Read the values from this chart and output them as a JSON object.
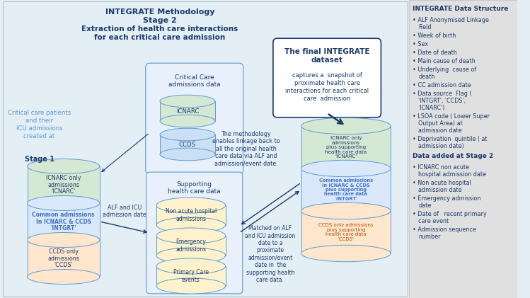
{
  "bg_color": "#e4eef5",
  "dark_blue": "#1a3a6b",
  "mid_blue": "#4472c4",
  "teal": "#5b9bd5",
  "green_light": "#d5e8d4",
  "blue_light": "#dae8fc",
  "orange_light": "#ffe6cc",
  "yellow_light": "#fff2cc",
  "white": "#ffffff",
  "sidebar_bg": "#e0e0e0",
  "sidebar_title": "INTEGRATE Data Structure",
  "sidebar_items": [
    "ALF Anonymised Linkage\nField",
    "Week of birth",
    "Sex",
    "Date of death",
    "Main cause of death",
    "Underlying  cause of\ndeath",
    "CC admission date",
    "Data source  Flag (\n'INTGRT', 'CCDS',\n'ICNARC')",
    "LSOA code ( Lower Super\nOutput Area) at\nadmission date",
    "Deprivation  quintile ( at\nadmission date)"
  ],
  "sidebar_title2": "Data added at Stage 2",
  "sidebar_items2": [
    "ICNARC non acute\nhospital admission date",
    "Non acute hospital\nadmission date",
    "Emergency admission\ndate",
    "Date of   recent primary\ncare event",
    "Admission sequence\nnumber"
  ]
}
